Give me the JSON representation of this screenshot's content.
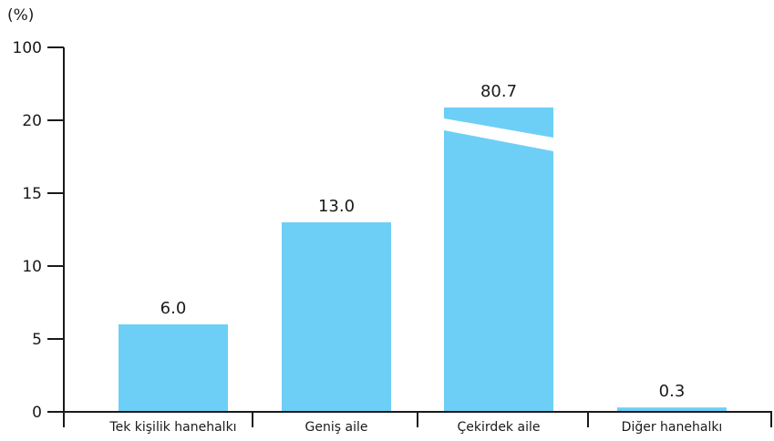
{
  "chart_data": {
    "type": "bar",
    "unit_label": "(%)",
    "categories": [
      "Tek kişilik hanehalkı",
      "Geniş aile",
      "Çekirdek aile",
      "Diğer hanehalkı"
    ],
    "values": [
      6.0,
      13.0,
      80.7,
      0.3
    ],
    "value_labels": [
      "6.0",
      "13.0",
      "80.7",
      "0.3"
    ],
    "y_ticks": [
      0,
      5,
      10,
      15,
      20,
      100
    ],
    "y_tick_labels": [
      "0",
      "5",
      "10",
      "15",
      "20",
      "100"
    ],
    "axis_break": true,
    "bar_color": "#6dcff6",
    "axis_color": "#1a1a1a",
    "grid": false,
    "legend": "none"
  }
}
